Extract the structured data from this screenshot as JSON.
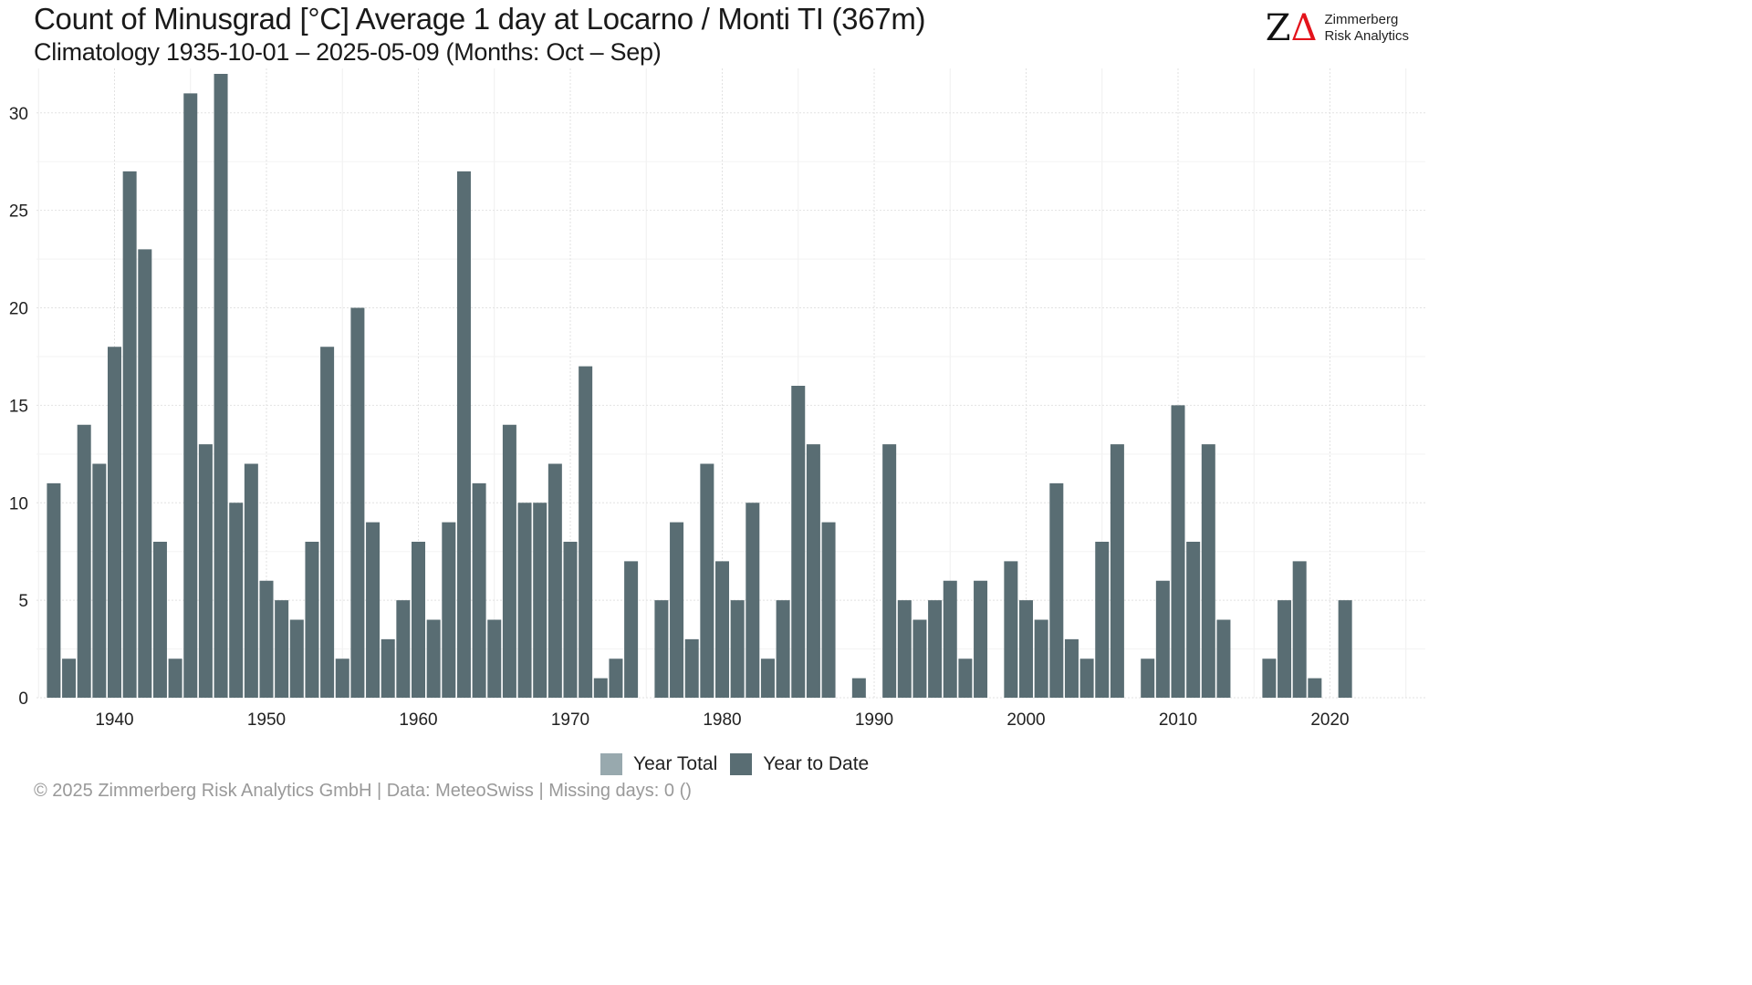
{
  "title": "Count of Minusgrad [°C] Average 1 day at Locarno / Monti  TI (367m)",
  "subtitle": "Climatology 1935-10-01 – 2025-05-09 (Months: Oct – Sep)",
  "logo": {
    "mark_z": "Z",
    "mark_delta": "Δ",
    "line1": "Zimmerberg",
    "line2": "Risk Analytics"
  },
  "legend": {
    "year_total": "Year Total",
    "year_to_date": "Year to Date"
  },
  "footer": "©  2025 Zimmerberg Risk Analytics GmbH | Data: MeteoSwiss | Missing days: 0 ()",
  "colors": {
    "year_total": "#98a9ae",
    "year_to_date": "#596d73",
    "grid": "#e4e4e4",
    "text": "#222222"
  },
  "chart_data": {
    "type": "bar",
    "title": "Count of Minusgrad [°C] Average 1 day at Locarno / Monti  TI (367m)",
    "subtitle": "Climatology 1935-10-01 – 2025-05-09 (Months: Oct – Sep)",
    "xlabel": "",
    "ylabel": "",
    "xlim": [
      1935,
      2025
    ],
    "ylim": [
      0,
      32
    ],
    "x_ticks": [
      1940,
      1950,
      1960,
      1970,
      1980,
      1990,
      2000,
      2010,
      2020
    ],
    "y_ticks": [
      0,
      5,
      10,
      15,
      20,
      25,
      30
    ],
    "grid": true,
    "legend_position": "bottom",
    "x": [
      1936,
      1937,
      1938,
      1939,
      1940,
      1941,
      1942,
      1943,
      1944,
      1945,
      1946,
      1947,
      1948,
      1949,
      1950,
      1951,
      1952,
      1953,
      1954,
      1955,
      1956,
      1957,
      1958,
      1959,
      1960,
      1961,
      1962,
      1963,
      1964,
      1965,
      1966,
      1967,
      1968,
      1969,
      1970,
      1971,
      1972,
      1973,
      1974,
      1975,
      1976,
      1977,
      1978,
      1979,
      1980,
      1981,
      1982,
      1983,
      1984,
      1985,
      1986,
      1987,
      1988,
      1989,
      1990,
      1991,
      1992,
      1993,
      1994,
      1995,
      1996,
      1997,
      1998,
      1999,
      2000,
      2001,
      2002,
      2003,
      2004,
      2005,
      2006,
      2007,
      2008,
      2009,
      2010,
      2011,
      2012,
      2013,
      2014,
      2015,
      2016,
      2017,
      2018,
      2019,
      2020,
      2021
    ],
    "series": [
      {
        "name": "Year to Date",
        "values": [
          11,
          2,
          14,
          12,
          18,
          27,
          23,
          8,
          2,
          31,
          13,
          32,
          10,
          12,
          6,
          5,
          4,
          8,
          18,
          2,
          20,
          9,
          3,
          5,
          8,
          4,
          9,
          27,
          11,
          4,
          14,
          10,
          10,
          12,
          8,
          17,
          1,
          2,
          7,
          0,
          5,
          9,
          3,
          12,
          7,
          5,
          10,
          2,
          5,
          16,
          13,
          9,
          0,
          1,
          0,
          13,
          5,
          4,
          5,
          6,
          2,
          6,
          0,
          7,
          5,
          4,
          11,
          3,
          2,
          8,
          13,
          0,
          2,
          6,
          15,
          8,
          13,
          4,
          0,
          0,
          2,
          5,
          7,
          1,
          0,
          5
        ]
      }
    ]
  }
}
